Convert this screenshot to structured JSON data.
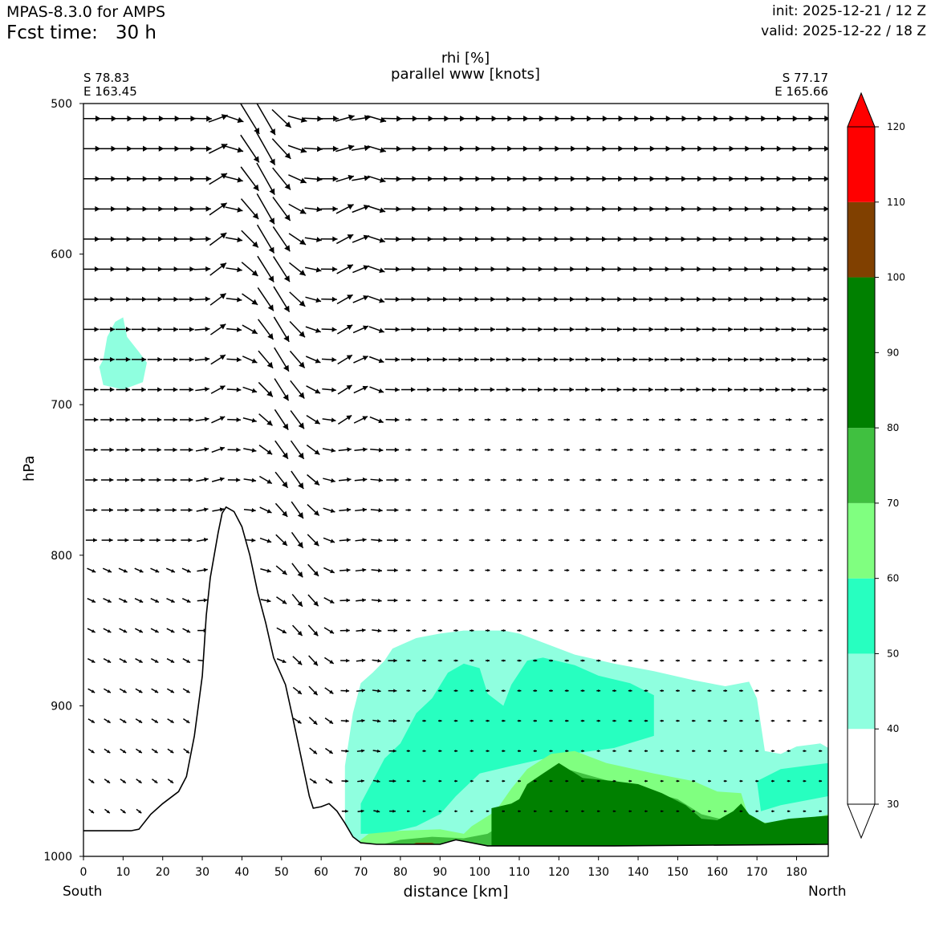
{
  "header": {
    "model": "MPAS-8.3.0 for AMPS",
    "fcst": "Fcst time:   30 h",
    "init": "init: 2025-12-21 / 12 Z",
    "valid": "valid: 2025-12-22 / 18 Z"
  },
  "chart_data": {
    "type": "cross-section",
    "title_line1": "rhi [%]",
    "title_line2": "parallel www [knots]",
    "xlabel": "distance [km]",
    "ylabel": "hPa",
    "left_end": {
      "lat": "S 78.83",
      "lon": "E 163.45",
      "side": "South"
    },
    "right_end": {
      "lat": "S 77.17",
      "lon": "E 165.66",
      "side": "North"
    },
    "xlim": [
      0,
      188
    ],
    "ylim": [
      1000,
      500
    ],
    "xticks": [
      0,
      10,
      20,
      30,
      40,
      50,
      60,
      70,
      80,
      90,
      100,
      110,
      120,
      130,
      140,
      150,
      160,
      170,
      180
    ],
    "yticks": [
      500,
      600,
      700,
      800,
      900,
      1000
    ],
    "colorbar": {
      "levels": [
        30,
        40,
        50,
        60,
        70,
        80,
        90,
        100,
        110,
        120
      ],
      "bands": [
        {
          "from": 30,
          "to": 40,
          "color": "#ffffff"
        },
        {
          "from": 40,
          "to": 50,
          "color": "#8fffdf"
        },
        {
          "from": 50,
          "to": 60,
          "color": "#27ffc0"
        },
        {
          "from": 60,
          "to": 70,
          "color": "#80ff80"
        },
        {
          "from": 70,
          "to": 80,
          "color": "#40c040"
        },
        {
          "from": 80,
          "to": 100,
          "color": "#008000"
        },
        {
          "from": 100,
          "to": 110,
          "color": "#804000"
        },
        {
          "from": 110,
          "to": 120,
          "color": "#ff0000"
        }
      ]
    },
    "terrain": [
      [
        0,
        983
      ],
      [
        12,
        983
      ],
      [
        14,
        982
      ],
      [
        17,
        972
      ],
      [
        20,
        965
      ],
      [
        24,
        957
      ],
      [
        26,
        947
      ],
      [
        28,
        920
      ],
      [
        30,
        880
      ],
      [
        31,
        840
      ],
      [
        32,
        815
      ],
      [
        34,
        785
      ],
      [
        35,
        772
      ],
      [
        36,
        768
      ],
      [
        38,
        771
      ],
      [
        40,
        781
      ],
      [
        42,
        800
      ],
      [
        44,
        825
      ],
      [
        46,
        845
      ],
      [
        48,
        868
      ],
      [
        50,
        880
      ],
      [
        51,
        886
      ],
      [
        53,
        910
      ],
      [
        55,
        935
      ],
      [
        57,
        960
      ],
      [
        58,
        968
      ],
      [
        60,
        967
      ],
      [
        62,
        965
      ],
      [
        64,
        970
      ],
      [
        66,
        978
      ],
      [
        68,
        987
      ],
      [
        70,
        991
      ],
      [
        74,
        992
      ],
      [
        90,
        992
      ],
      [
        94,
        989
      ],
      [
        98,
        991
      ],
      [
        102,
        993
      ],
      [
        134,
        993
      ],
      [
        188,
        992
      ]
    ],
    "rh_regions": [
      {
        "level": 40,
        "points": [
          [
            66,
            985
          ],
          [
            66,
            940
          ],
          [
            68,
            905
          ],
          [
            70,
            885
          ],
          [
            73,
            878
          ],
          [
            76,
            870
          ],
          [
            78,
            862
          ],
          [
            84,
            855
          ],
          [
            90,
            852
          ],
          [
            96,
            850
          ],
          [
            106,
            850
          ],
          [
            110,
            852
          ],
          [
            116,
            858
          ],
          [
            124,
            866
          ],
          [
            134,
            872
          ],
          [
            144,
            877
          ],
          [
            154,
            883
          ],
          [
            162,
            887
          ],
          [
            168,
            884
          ],
          [
            170,
            895
          ],
          [
            172,
            930
          ],
          [
            176,
            932
          ],
          [
            180,
            927
          ],
          [
            186,
            925
          ],
          [
            188,
            928
          ],
          [
            188,
            993
          ],
          [
            66,
            993
          ]
        ]
      },
      {
        "level": 40,
        "points": [
          [
            5,
            670
          ],
          [
            6,
            655
          ],
          [
            8,
            645
          ],
          [
            10,
            642
          ],
          [
            11,
            655
          ],
          [
            14,
            665
          ],
          [
            16,
            672
          ],
          [
            15,
            685
          ],
          [
            10,
            690
          ],
          [
            5,
            687
          ],
          [
            4,
            675
          ]
        ]
      },
      {
        "level": 50,
        "points": [
          [
            70,
            985
          ],
          [
            70,
            965
          ],
          [
            73,
            950
          ],
          [
            76,
            935
          ],
          [
            80,
            925
          ],
          [
            84,
            905
          ],
          [
            88,
            895
          ],
          [
            92,
            878
          ],
          [
            96,
            872
          ],
          [
            100,
            875
          ],
          [
            102,
            892
          ],
          [
            106,
            900
          ],
          [
            108,
            886
          ],
          [
            112,
            870
          ],
          [
            116,
            868
          ],
          [
            124,
            873
          ],
          [
            130,
            880
          ],
          [
            138,
            885
          ],
          [
            144,
            893
          ],
          [
            144,
            920
          ],
          [
            134,
            928
          ],
          [
            120,
            933
          ],
          [
            108,
            940
          ],
          [
            100,
            945
          ],
          [
            94,
            960
          ],
          [
            90,
            972
          ],
          [
            84,
            980
          ],
          [
            76,
            985
          ]
        ]
      },
      {
        "level": 50,
        "points": [
          [
            170,
            950
          ],
          [
            176,
            942
          ],
          [
            182,
            940
          ],
          [
            188,
            938
          ],
          [
            188,
            960
          ],
          [
            176,
            966
          ],
          [
            171,
            970
          ]
        ]
      },
      {
        "level": 60,
        "points": [
          [
            68,
            993
          ],
          [
            72,
            985
          ],
          [
            80,
            983
          ],
          [
            90,
            982
          ],
          [
            96,
            985
          ],
          [
            98,
            980
          ],
          [
            104,
            970
          ],
          [
            108,
            955
          ],
          [
            112,
            942
          ],
          [
            118,
            932
          ],
          [
            124,
            930
          ],
          [
            132,
            938
          ],
          [
            144,
            945
          ],
          [
            154,
            950
          ],
          [
            160,
            957
          ],
          [
            166,
            958
          ],
          [
            168,
            975
          ],
          [
            176,
            980
          ],
          [
            184,
            975
          ],
          [
            188,
            972
          ],
          [
            188,
            993
          ]
        ]
      },
      {
        "level": 70,
        "points": [
          [
            74,
            993
          ],
          [
            80,
            989
          ],
          [
            88,
            987
          ],
          [
            96,
            988
          ],
          [
            102,
            985
          ],
          [
            108,
            975
          ],
          [
            112,
            958
          ],
          [
            118,
            944
          ],
          [
            122,
            942
          ],
          [
            130,
            948
          ],
          [
            140,
            955
          ],
          [
            150,
            962
          ],
          [
            156,
            972
          ],
          [
            168,
            980
          ],
          [
            176,
            983
          ],
          [
            188,
            980
          ],
          [
            188,
            993
          ]
        ]
      },
      {
        "level": 80,
        "points": [
          [
            103,
            993
          ],
          [
            103,
            968
          ],
          [
            108,
            965
          ],
          [
            110,
            962
          ],
          [
            112,
            952
          ],
          [
            116,
            945
          ],
          [
            120,
            938
          ],
          [
            126,
            948
          ],
          [
            134,
            950
          ],
          [
            140,
            952
          ],
          [
            146,
            958
          ],
          [
            152,
            966
          ],
          [
            156,
            975
          ],
          [
            160,
            976
          ],
          [
            164,
            970
          ],
          [
            166,
            965
          ],
          [
            168,
            972
          ],
          [
            172,
            978
          ],
          [
            178,
            975
          ],
          [
            188,
            973
          ],
          [
            188,
            993
          ]
        ]
      },
      {
        "level": 100,
        "points": [
          [
            82,
            993
          ],
          [
            84,
            991
          ],
          [
            88,
            991
          ],
          [
            90,
            993
          ]
        ]
      }
    ]
  }
}
